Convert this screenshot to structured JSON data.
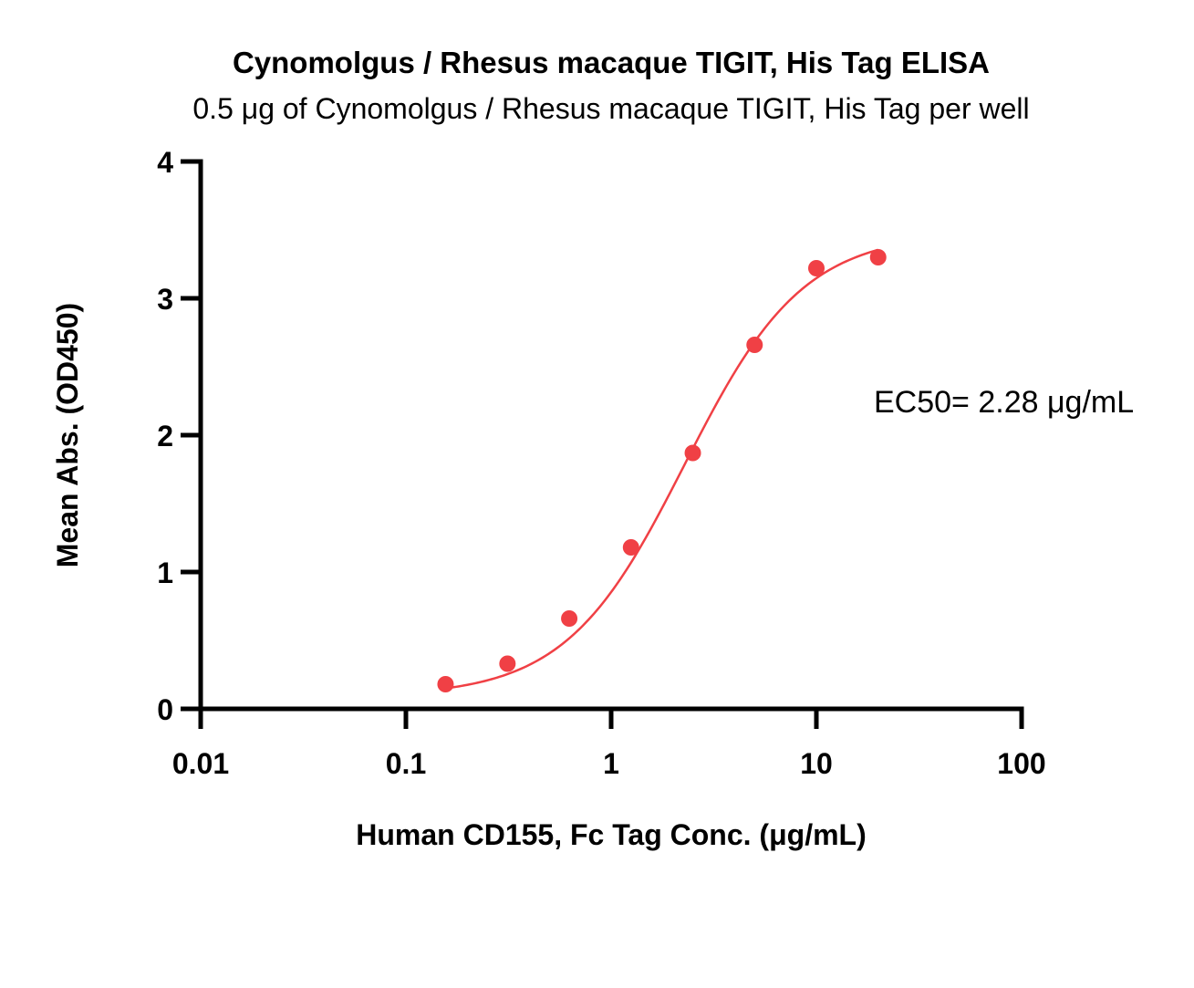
{
  "chart_data": {
    "type": "scatter",
    "title": "Cynomolgus / Rhesus macaque TIGIT, His Tag ELISA",
    "subtitle": "0.5 μg of Cynomolgus / Rhesus macaque TIGIT, His Tag per well",
    "xlabel": "Human CD155, Fc Tag Conc. (μg/mL)",
    "ylabel": "Mean Abs. (OD450)",
    "xscale": "log",
    "xlim": [
      0.01,
      100
    ],
    "ylim": [
      0,
      4
    ],
    "xticks": [
      0.01,
      0.1,
      1,
      10,
      100
    ],
    "xtick_labels": [
      "0.01",
      "0.1",
      "1",
      "10",
      "100"
    ],
    "yticks": [
      0,
      1,
      2,
      3,
      4
    ],
    "ytick_labels": [
      "0",
      "1",
      "2",
      "3",
      "4"
    ],
    "grid": false,
    "series": [
      {
        "color": "#f04045",
        "points": [
          {
            "x": 0.156,
            "y": 0.18
          },
          {
            "x": 0.3125,
            "y": 0.33
          },
          {
            "x": 0.625,
            "y": 0.66
          },
          {
            "x": 1.25,
            "y": 1.18
          },
          {
            "x": 2.5,
            "y": 1.87
          },
          {
            "x": 5,
            "y": 2.66
          },
          {
            "x": 10,
            "y": 3.22
          },
          {
            "x": 20,
            "y": 3.3
          }
        ],
        "fit": {
          "model": "4PL",
          "bottom": 0.09,
          "top": 3.48,
          "ec50": 2.28,
          "hill": 1.5,
          "x_range": [
            0.156,
            20
          ]
        }
      }
    ],
    "annotations": [
      {
        "text": "EC50= 2.28 μg/mL"
      }
    ]
  }
}
